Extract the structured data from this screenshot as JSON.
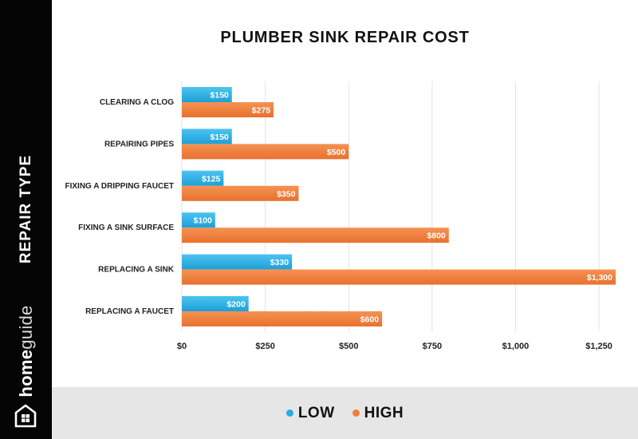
{
  "sidebar": {
    "axis_title": "REPAIR TYPE",
    "brand_part1": "home",
    "brand_part2": "guide",
    "logo_icon": "house-icon"
  },
  "chart_data": {
    "type": "bar",
    "orientation": "horizontal",
    "title": "PLUMBER SINK REPAIR COST",
    "xlabel": "",
    "ylabel": "REPAIR TYPE",
    "categories": [
      "CLEARING A CLOG",
      "REPAIRING PIPES",
      "FIXING A DRIPPING FAUCET",
      "FIXING A SINK SURFACE",
      "REPLACING A SINK",
      "REPLACING A FAUCET"
    ],
    "series": [
      {
        "name": "LOW",
        "color": "#29abe2",
        "values": [
          150,
          150,
          125,
          100,
          330,
          200
        ],
        "labels": [
          "$150",
          "$150",
          "$125",
          "$100",
          "$330",
          "$200"
        ]
      },
      {
        "name": "HIGH",
        "color": "#f07f3c",
        "values": [
          275,
          500,
          350,
          800,
          1300,
          600
        ],
        "labels": [
          "$275",
          "$500",
          "$350",
          "$800",
          "$1,300",
          "$600"
        ]
      }
    ],
    "xlim": [
      0,
      1300
    ],
    "xticks": [
      0,
      250,
      500,
      750,
      1000,
      1250
    ],
    "xtick_labels": [
      "$0",
      "$250",
      "$500",
      "$750",
      "$1,000",
      "$1,250"
    ],
    "grid": true,
    "legend_position": "bottom"
  }
}
